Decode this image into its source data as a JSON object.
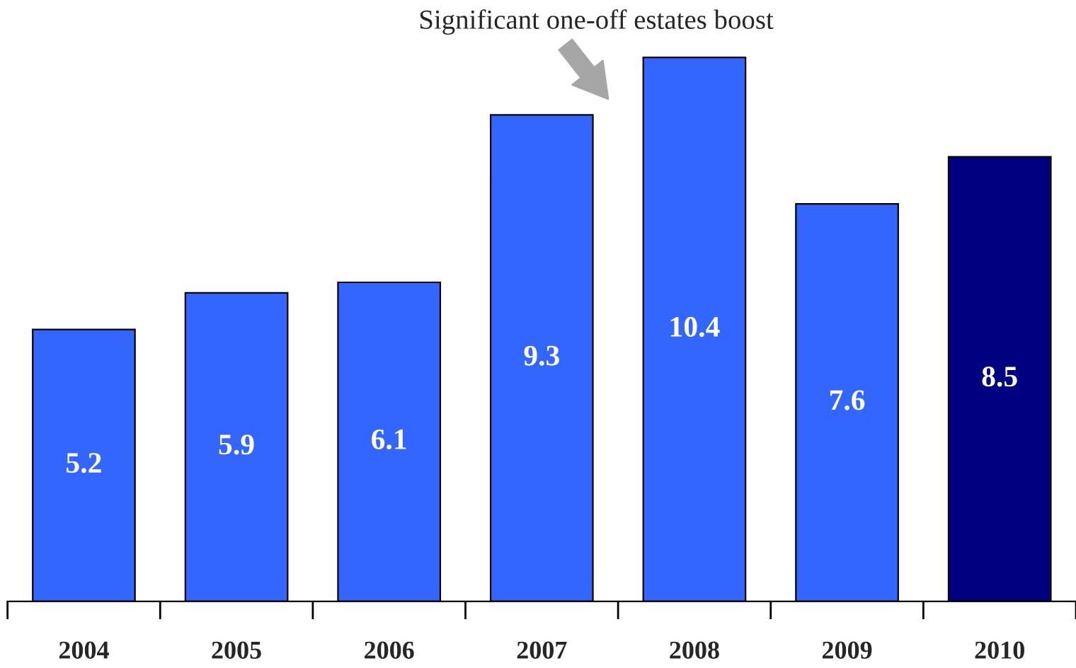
{
  "chart_data": {
    "type": "bar",
    "categories": [
      "2004",
      "2005",
      "2006",
      "2007",
      "2008",
      "2009",
      "2010"
    ],
    "values": [
      5.2,
      5.9,
      6.1,
      9.3,
      10.4,
      7.6,
      8.5
    ],
    "colors": [
      "#3366ff",
      "#3366ff",
      "#3366ff",
      "#3366ff",
      "#3366ff",
      "#3366ff",
      "#000080"
    ],
    "data_labels": true,
    "grid": false,
    "legend": false,
    "annotations": [
      {
        "text": "Significant one-off estates boost",
        "x": "2008",
        "y": 10.4
      }
    ]
  }
}
